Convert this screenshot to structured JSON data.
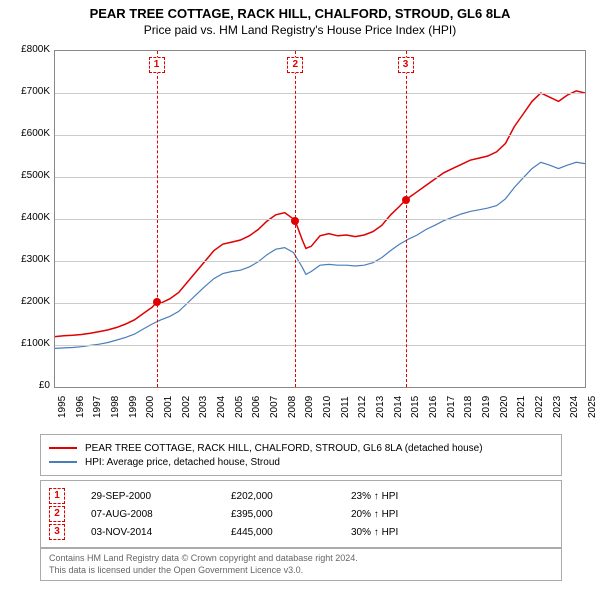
{
  "title": {
    "line1": "PEAR TREE COTTAGE, RACK HILL, CHALFORD, STROUD, GL6 8LA",
    "line2": "Price paid vs. HM Land Registry's House Price Index (HPI)"
  },
  "chart": {
    "type": "line",
    "background_color": "#ffffff",
    "grid_color": "#cccccc",
    "border_color": "#888888",
    "x_axis": {
      "min": 1995,
      "max": 2025,
      "tick_step": 1
    },
    "y_axis": {
      "min": 0,
      "max": 800000,
      "tick_step": 100000,
      "tick_labels": [
        "£0",
        "£100K",
        "£200K",
        "£300K",
        "£400K",
        "£500K",
        "£600K",
        "£700K",
        "£800K"
      ]
    },
    "series": [
      {
        "id": "price_paid",
        "label": "PEAR TREE COTTAGE, RACK HILL, CHALFORD, STROUD, GL6 8LA (detached house)",
        "color": "#e00000",
        "line_width": 1.5,
        "points": [
          [
            1995.0,
            120000
          ],
          [
            1995.5,
            122000
          ],
          [
            1996.0,
            123000
          ],
          [
            1996.5,
            125000
          ],
          [
            1997.0,
            128000
          ],
          [
            1997.5,
            132000
          ],
          [
            1998.0,
            136000
          ],
          [
            1998.5,
            142000
          ],
          [
            1999.0,
            150000
          ],
          [
            1999.5,
            160000
          ],
          [
            2000.0,
            175000
          ],
          [
            2000.5,
            190000
          ],
          [
            2000.75,
            202000
          ],
          [
            2001.0,
            200000
          ],
          [
            2001.5,
            210000
          ],
          [
            2002.0,
            225000
          ],
          [
            2002.5,
            250000
          ],
          [
            2003.0,
            275000
          ],
          [
            2003.5,
            300000
          ],
          [
            2004.0,
            325000
          ],
          [
            2004.5,
            340000
          ],
          [
            2005.0,
            345000
          ],
          [
            2005.5,
            350000
          ],
          [
            2006.0,
            360000
          ],
          [
            2006.5,
            375000
          ],
          [
            2007.0,
            395000
          ],
          [
            2007.5,
            410000
          ],
          [
            2008.0,
            415000
          ],
          [
            2008.5,
            400000
          ],
          [
            2008.6,
            395000
          ],
          [
            2009.0,
            350000
          ],
          [
            2009.2,
            330000
          ],
          [
            2009.5,
            335000
          ],
          [
            2010.0,
            360000
          ],
          [
            2010.5,
            365000
          ],
          [
            2011.0,
            360000
          ],
          [
            2011.5,
            362000
          ],
          [
            2012.0,
            358000
          ],
          [
            2012.5,
            362000
          ],
          [
            2013.0,
            370000
          ],
          [
            2013.5,
            385000
          ],
          [
            2014.0,
            410000
          ],
          [
            2014.5,
            430000
          ],
          [
            2014.84,
            445000
          ],
          [
            2015.0,
            450000
          ],
          [
            2015.5,
            465000
          ],
          [
            2016.0,
            480000
          ],
          [
            2016.5,
            495000
          ],
          [
            2017.0,
            510000
          ],
          [
            2017.5,
            520000
          ],
          [
            2018.0,
            530000
          ],
          [
            2018.5,
            540000
          ],
          [
            2019.0,
            545000
          ],
          [
            2019.5,
            550000
          ],
          [
            2020.0,
            560000
          ],
          [
            2020.5,
            580000
          ],
          [
            2021.0,
            620000
          ],
          [
            2021.5,
            650000
          ],
          [
            2022.0,
            680000
          ],
          [
            2022.5,
            700000
          ],
          [
            2023.0,
            690000
          ],
          [
            2023.5,
            680000
          ],
          [
            2024.0,
            695000
          ],
          [
            2024.5,
            705000
          ],
          [
            2025.0,
            700000
          ]
        ]
      },
      {
        "id": "hpi",
        "label": "HPI: Average price, detached house, Stroud",
        "color": "#4a7ebb",
        "line_width": 1.2,
        "points": [
          [
            1995.0,
            92000
          ],
          [
            1995.5,
            93000
          ],
          [
            1996.0,
            94000
          ],
          [
            1996.5,
            96000
          ],
          [
            1997.0,
            99000
          ],
          [
            1997.5,
            102000
          ],
          [
            1998.0,
            106000
          ],
          [
            1998.5,
            112000
          ],
          [
            1999.0,
            118000
          ],
          [
            1999.5,
            126000
          ],
          [
            2000.0,
            138000
          ],
          [
            2000.5,
            150000
          ],
          [
            2001.0,
            160000
          ],
          [
            2001.5,
            168000
          ],
          [
            2002.0,
            180000
          ],
          [
            2002.5,
            200000
          ],
          [
            2003.0,
            220000
          ],
          [
            2003.5,
            240000
          ],
          [
            2004.0,
            258000
          ],
          [
            2004.5,
            270000
          ],
          [
            2005.0,
            275000
          ],
          [
            2005.5,
            278000
          ],
          [
            2006.0,
            286000
          ],
          [
            2006.5,
            298000
          ],
          [
            2007.0,
            315000
          ],
          [
            2007.5,
            328000
          ],
          [
            2008.0,
            332000
          ],
          [
            2008.5,
            320000
          ],
          [
            2009.0,
            285000
          ],
          [
            2009.2,
            268000
          ],
          [
            2009.5,
            275000
          ],
          [
            2010.0,
            290000
          ],
          [
            2010.5,
            292000
          ],
          [
            2011.0,
            290000
          ],
          [
            2011.5,
            290000
          ],
          [
            2012.0,
            288000
          ],
          [
            2012.5,
            290000
          ],
          [
            2013.0,
            296000
          ],
          [
            2013.5,
            308000
          ],
          [
            2014.0,
            325000
          ],
          [
            2014.5,
            340000
          ],
          [
            2015.0,
            352000
          ],
          [
            2015.5,
            362000
          ],
          [
            2016.0,
            375000
          ],
          [
            2016.5,
            385000
          ],
          [
            2017.0,
            396000
          ],
          [
            2017.5,
            404000
          ],
          [
            2018.0,
            412000
          ],
          [
            2018.5,
            418000
          ],
          [
            2019.0,
            422000
          ],
          [
            2019.5,
            426000
          ],
          [
            2020.0,
            432000
          ],
          [
            2020.5,
            448000
          ],
          [
            2021.0,
            475000
          ],
          [
            2021.5,
            498000
          ],
          [
            2022.0,
            520000
          ],
          [
            2022.5,
            535000
          ],
          [
            2023.0,
            528000
          ],
          [
            2023.5,
            520000
          ],
          [
            2024.0,
            528000
          ],
          [
            2024.5,
            535000
          ],
          [
            2025.0,
            532000
          ]
        ]
      }
    ],
    "sale_markers": [
      {
        "n": "1",
        "year": 2000.75,
        "price": 202000
      },
      {
        "n": "2",
        "year": 2008.6,
        "price": 395000
      },
      {
        "n": "3",
        "year": 2014.84,
        "price": 445000
      }
    ]
  },
  "legend": {
    "series": [
      {
        "color": "#e00000",
        "label": "PEAR TREE COTTAGE, RACK HILL, CHALFORD, STROUD, GL6 8LA (detached house)"
      },
      {
        "color": "#4a7ebb",
        "label": "HPI: Average price, detached house, Stroud"
      }
    ]
  },
  "markers_table": [
    {
      "n": "1",
      "date": "29-SEP-2000",
      "price": "£202,000",
      "hpi": "23% ↑ HPI"
    },
    {
      "n": "2",
      "date": "07-AUG-2008",
      "price": "£395,000",
      "hpi": "20% ↑ HPI"
    },
    {
      "n": "3",
      "date": "03-NOV-2014",
      "price": "£445,000",
      "hpi": "30% ↑ HPI"
    }
  ],
  "attribution": {
    "line1": "Contains HM Land Registry data © Crown copyright and database right 2024.",
    "line2": "This data is licensed under the Open Government Licence v3.0."
  }
}
